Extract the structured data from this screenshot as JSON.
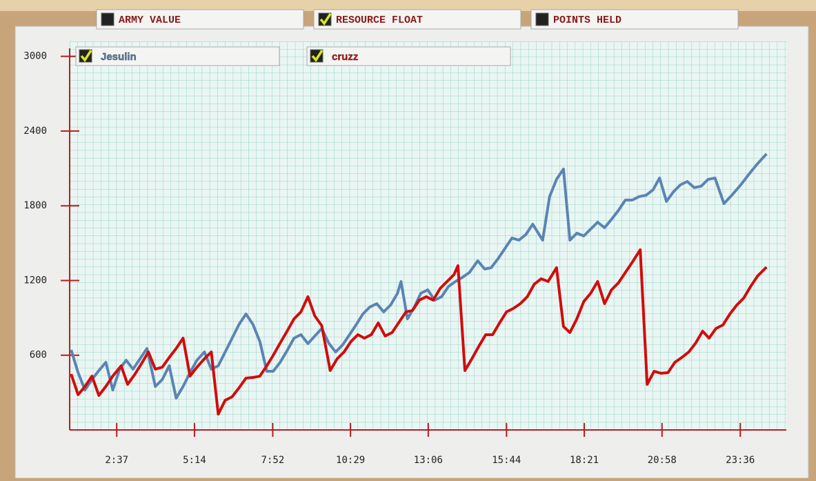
{
  "tabs": [
    {
      "label": "ARMY VALUE",
      "checked": false
    },
    {
      "label": "RESOURCE FLOAT",
      "checked": true
    },
    {
      "label": "POINTS HELD",
      "checked": false
    }
  ],
  "chart_data": {
    "type": "line",
    "xlim": [
      62,
      1509
    ],
    "ylim": [
      0,
      3120
    ],
    "xticks": [
      {
        "value": 157,
        "label": "2:37"
      },
      {
        "value": 314,
        "label": "5:14"
      },
      {
        "value": 472,
        "label": "7:52"
      },
      {
        "value": 629,
        "label": "10:29"
      },
      {
        "value": 786,
        "label": "13:06"
      },
      {
        "value": 944,
        "label": "15:44"
      },
      {
        "value": 1101,
        "label": "18:21"
      },
      {
        "value": 1258,
        "label": "20:58"
      },
      {
        "value": 1416,
        "label": "23:36"
      }
    ],
    "yticks": [
      600,
      1200,
      1800,
      2400,
      3000
    ],
    "grid": true,
    "series": [
      {
        "name": "Jesulin",
        "color": "#5b84b4",
        "x": [
          65,
          79,
          93,
          107,
          121,
          135,
          149,
          163,
          176,
          190,
          204,
          218,
          235,
          249,
          263,
          277,
          291,
          305,
          319,
          334,
          348,
          362,
          376,
          390,
          404,
          418,
          432,
          446,
          460,
          473,
          487,
          501,
          515,
          529,
          543,
          557,
          571,
          585,
          599,
          613,
          627,
          641,
          654,
          668,
          682,
          696,
          710,
          724,
          731,
          744,
          758,
          771,
          785,
          799,
          813,
          827,
          841,
          855,
          869,
          886,
          900,
          913,
          927,
          941,
          955,
          969,
          983,
          997,
          1017,
          1031,
          1045,
          1059,
          1072,
          1086,
          1100,
          1114,
          1128,
          1142,
          1156,
          1170,
          1184,
          1198,
          1212,
          1226,
          1240,
          1253,
          1267,
          1281,
          1295,
          1309,
          1323,
          1337,
          1351,
          1365,
          1383,
          1400,
          1417,
          1433,
          1450,
          1469
        ],
        "values": [
          643,
          460,
          321,
          405,
          477,
          543,
          321,
          488,
          560,
          488,
          571,
          654,
          349,
          405,
          515,
          255,
          349,
          460,
          560,
          626,
          488,
          515,
          626,
          737,
          848,
          931,
          848,
          710,
          471,
          471,
          543,
          637,
          737,
          765,
          693,
          754,
          815,
          698,
          626,
          682,
          765,
          848,
          931,
          987,
          1014,
          948,
          1003,
          1098,
          1192,
          892,
          987,
          1098,
          1125,
          1042,
          1070,
          1153,
          1192,
          1225,
          1264,
          1358,
          1292,
          1303,
          1375,
          1458,
          1541,
          1524,
          1569,
          1652,
          1524,
          1874,
          2012,
          2095,
          1524,
          1580,
          1558,
          1613,
          1668,
          1624,
          1691,
          1763,
          1846,
          1846,
          1874,
          1885,
          1929,
          2023,
          1835,
          1912,
          1968,
          1995,
          1946,
          1957,
          2012,
          2023,
          1818,
          1890,
          1968,
          2051,
          2134,
          2217
        ]
      },
      {
        "name": "cruzz",
        "color": "#d10c0c",
        "x": [
          65,
          79,
          93,
          107,
          121,
          135,
          149,
          166,
          179,
          193,
          207,
          221,
          235,
          249,
          263,
          277,
          291,
          305,
          319,
          334,
          348,
          362,
          376,
          390,
          404,
          418,
          432,
          446,
          460,
          473,
          487,
          501,
          515,
          529,
          543,
          557,
          571,
          588,
          602,
          616,
          630,
          644,
          657,
          671,
          685,
          699,
          713,
          727,
          741,
          754,
          768,
          782,
          796,
          810,
          824,
          838,
          846,
          860,
          874,
          888,
          902,
          916,
          930,
          944,
          958,
          972,
          986,
          1000,
          1014,
          1028,
          1045,
          1059,
          1072,
          1086,
          1100,
          1114,
          1128,
          1142,
          1156,
          1170,
          1184,
          1198,
          1214,
          1228,
          1242,
          1256,
          1270,
          1284,
          1298,
          1312,
          1326,
          1340,
          1353,
          1367,
          1381,
          1395,
          1409,
          1423,
          1437,
          1451,
          1469
        ],
        "values": [
          449,
          283,
          349,
          432,
          277,
          349,
          432,
          515,
          366,
          443,
          532,
          626,
          488,
          504,
          582,
          654,
          737,
          432,
          504,
          571,
          626,
          127,
          238,
          266,
          338,
          416,
          421,
          432,
          515,
          599,
          698,
          793,
          892,
          948,
          1070,
          915,
          837,
          477,
          571,
          626,
          710,
          765,
          737,
          765,
          859,
          754,
          782,
          865,
          948,
          959,
          1042,
          1070,
          1042,
          1136,
          1192,
          1247,
          1319,
          477,
          571,
          671,
          765,
          765,
          859,
          948,
          976,
          1014,
          1070,
          1170,
          1214,
          1192,
          1303,
          831,
          782,
          892,
          1031,
          1098,
          1192,
          1014,
          1125,
          1181,
          1264,
          1347,
          1447,
          366,
          471,
          455,
          460,
          543,
          582,
          626,
          698,
          793,
          737,
          815,
          843,
          931,
          1003,
          1059,
          1153,
          1236,
          1308
        ]
      }
    ]
  }
}
